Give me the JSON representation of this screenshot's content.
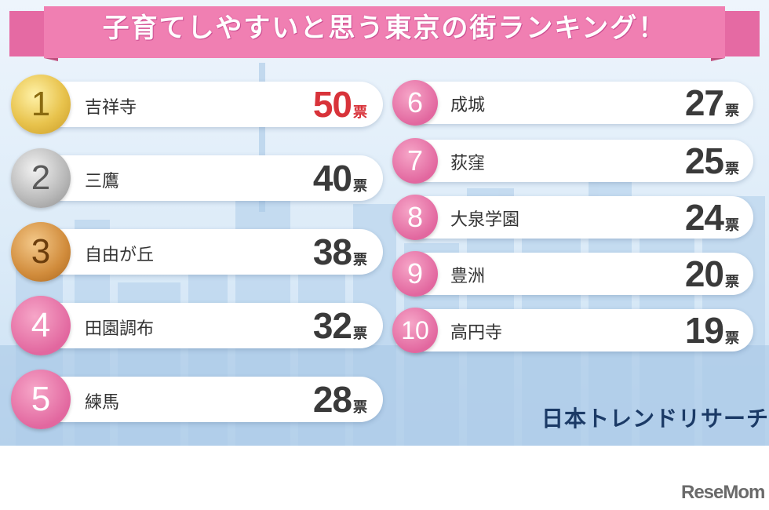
{
  "title": "子育てしやすいと思う東京の街ランキング！",
  "unit_label": "票",
  "left_column": [
    {
      "rank": "1",
      "name": "吉祥寺",
      "votes": "50",
      "medal": "gold"
    },
    {
      "rank": "2",
      "name": "三鷹",
      "votes": "40",
      "medal": "silver"
    },
    {
      "rank": "3",
      "name": "自由が丘",
      "votes": "38",
      "medal": "bronze"
    },
    {
      "rank": "4",
      "name": "田園調布",
      "votes": "32",
      "medal": "pink"
    },
    {
      "rank": "5",
      "name": "練馬",
      "votes": "28",
      "medal": "pink"
    }
  ],
  "right_column": [
    {
      "rank": "6",
      "name": "成城",
      "votes": "27"
    },
    {
      "rank": "7",
      "name": "荻窪",
      "votes": "25"
    },
    {
      "rank": "8",
      "name": "大泉学園",
      "votes": "24"
    },
    {
      "rank": "9",
      "name": "豊洲",
      "votes": "20"
    },
    {
      "rank": "10",
      "name": "高円寺",
      "votes": "19"
    }
  ],
  "source": "日本トレンドリサーチ",
  "watermark": "ReseMom",
  "colors": {
    "banner_pink": "#f07fb2",
    "badge_pink": "#e2679f",
    "top_vote_red": "#d8333a",
    "source_navy": "#1b3a66"
  }
}
